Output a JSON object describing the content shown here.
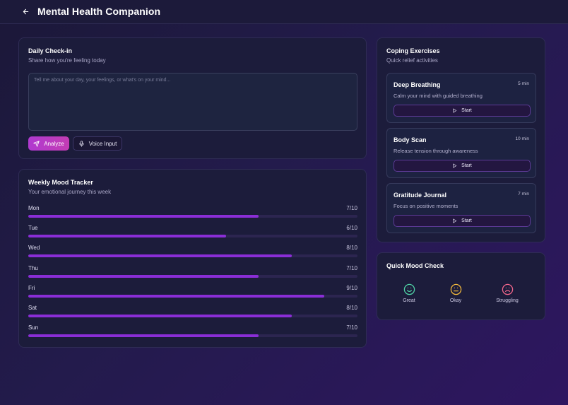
{
  "header": {
    "title": "Mental Health Companion",
    "back_icon": "arrow-left-icon"
  },
  "checkin": {
    "title": "Daily Check-in",
    "subtitle": "Share how you're feeling today",
    "placeholder": "Tell me about your day, your feelings, or what's on your mind...",
    "value": "",
    "analyze_label": "Analyze",
    "voice_label": "Voice Input"
  },
  "tracker": {
    "title": "Weekly Mood Tracker",
    "subtitle": "Your emotional journey this week",
    "accent": "#8a2ed6",
    "days": [
      {
        "day": "Mon",
        "score": "7/10",
        "value": 7
      },
      {
        "day": "Tue",
        "score": "6/10",
        "value": 6
      },
      {
        "day": "Wed",
        "score": "8/10",
        "value": 8
      },
      {
        "day": "Thu",
        "score": "7/10",
        "value": 7
      },
      {
        "day": "Fri",
        "score": "9/10",
        "value": 9
      },
      {
        "day": "Sat",
        "score": "8/10",
        "value": 8
      },
      {
        "day": "Sun",
        "score": "7/10",
        "value": 7
      }
    ]
  },
  "coping": {
    "title": "Coping Exercises",
    "subtitle": "Quick relief activities",
    "exercises": [
      {
        "name": "Deep Breathing",
        "duration": "5 min",
        "description": "Calm your mind with guided breathing",
        "start_label": "Start"
      },
      {
        "name": "Body Scan",
        "duration": "10 min",
        "description": "Release tension through awareness",
        "start_label": "Start"
      },
      {
        "name": "Gratitude Journal",
        "duration": "7 min",
        "description": "Focus on positive moments",
        "start_label": "Start"
      }
    ]
  },
  "quick_mood": {
    "title": "Quick Mood Check",
    "options": [
      {
        "label": "Great",
        "icon": "smile-icon",
        "color": "#4fd1a5"
      },
      {
        "label": "Okay",
        "icon": "neutral-face-icon",
        "color": "#f2b83c"
      },
      {
        "label": "Struggling",
        "icon": "frown-icon",
        "color": "#f2668b"
      }
    ]
  }
}
